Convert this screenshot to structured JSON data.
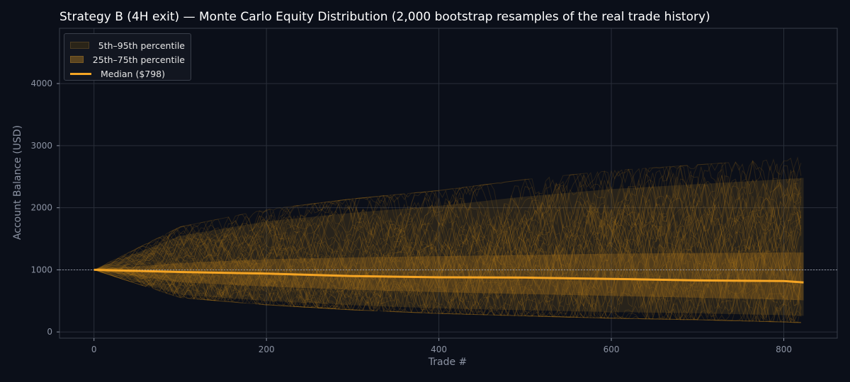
{
  "chart_data": {
    "type": "line",
    "title": "Strategy B (4H exit) — Monte Carlo Equity Distribution (2,000 bootstrap resamples of the real trade history)",
    "xlabel": "Trade #",
    "ylabel": "Account Balance (USD)",
    "xlim": [
      -40,
      862
    ],
    "ylim": [
      -100,
      4890
    ],
    "x_ticks": [
      0,
      200,
      400,
      600,
      800
    ],
    "y_ticks": [
      0,
      1000,
      2000,
      3000,
      4000
    ],
    "reference_line": 1000,
    "grid": true,
    "legend_position": "top-left",
    "x": [
      0,
      100,
      200,
      300,
      400,
      500,
      600,
      700,
      800,
      823
    ],
    "bands": [
      {
        "name": "5th–95th percentile",
        "lower": [
          1000,
          600,
          500,
          430,
          380,
          350,
          320,
          300,
          270,
          260
        ],
        "upper": [
          1000,
          1550,
          1780,
          1920,
          2030,
          2180,
          2300,
          2380,
          2460,
          2480
        ],
        "color": "#2a2418"
      },
      {
        "name": "25th–75th percentile",
        "lower": [
          1000,
          800,
          730,
          680,
          640,
          610,
          580,
          550,
          520,
          510
        ],
        "upper": [
          1000,
          1110,
          1170,
          1200,
          1220,
          1240,
          1260,
          1270,
          1280,
          1280
        ],
        "color": "#5a4420"
      }
    ],
    "series": [
      {
        "name": "Median ($798)",
        "values": [
          1000,
          965,
          940,
          900,
          880,
          875,
          855,
          830,
          820,
          798
        ],
        "color": "#f5a524"
      }
    ],
    "colors": {
      "background": "#0b0f19",
      "grid": "#2a2f3a",
      "paths": "#b07a1e"
    }
  }
}
